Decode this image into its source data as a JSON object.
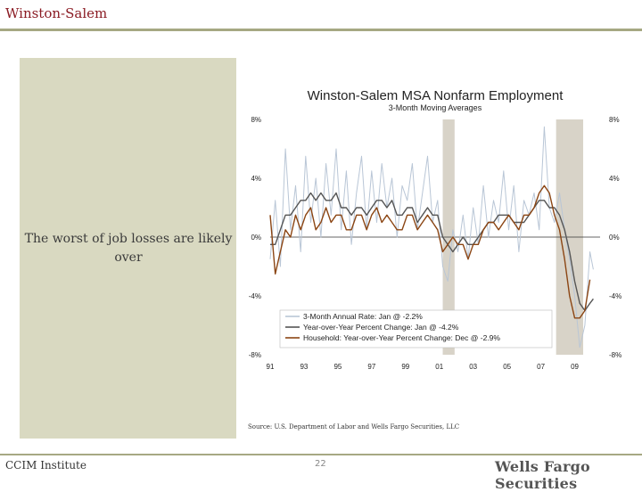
{
  "slide": {
    "title": "Winston-Salem",
    "panel_text": "The worst of job losses are likely over",
    "source": "Source: U.S. Department of Labor and Wells Fargo Securities, LLC",
    "footer_left": "CCIM Institute",
    "page_number": "22",
    "brand": "Wells Fargo Securities"
  },
  "chart_data": {
    "type": "line",
    "title": "Winston-Salem MSA Nonfarm Employment",
    "subtitle": "3-Month Moving Averages",
    "xlabel": "",
    "ylabel": "",
    "ylim": [
      -8,
      8
    ],
    "xlim": [
      1991,
      2010.5
    ],
    "y_ticks": [
      8,
      4,
      0,
      -4,
      -8
    ],
    "y_tick_labels": [
      "8%",
      "4%",
      "0%",
      "-4%",
      "-8%"
    ],
    "x_ticks": [
      1991,
      1993,
      1995,
      1997,
      1999,
      2001,
      2003,
      2005,
      2007,
      2009
    ],
    "x_tick_labels": [
      "91",
      "93",
      "95",
      "97",
      "99",
      "01",
      "03",
      "05",
      "07",
      "09"
    ],
    "recessions": [
      [
        2001.2,
        2001.9
      ],
      [
        2007.9,
        2009.5
      ]
    ],
    "legend_position": "bottom-center",
    "series": [
      {
        "name": "3-Month Annual Rate: Jan @ -2.2%",
        "color": "#b9c6d6",
        "x": [
          1991.0,
          1991.3,
          1991.6,
          1991.9,
          1992.2,
          1992.5,
          1992.8,
          1993.1,
          1993.4,
          1993.7,
          1994.0,
          1994.3,
          1994.6,
          1994.9,
          1995.2,
          1995.5,
          1995.8,
          1996.1,
          1996.4,
          1996.7,
          1997.0,
          1997.3,
          1997.6,
          1997.9,
          1998.2,
          1998.5,
          1998.8,
          1999.1,
          1999.4,
          1999.7,
          2000.0,
          2000.3,
          2000.6,
          2000.9,
          2001.2,
          2001.5,
          2001.8,
          2002.1,
          2002.4,
          2002.7,
          2003.0,
          2003.3,
          2003.6,
          2003.9,
          2004.2,
          2004.5,
          2004.8,
          2005.1,
          2005.4,
          2005.7,
          2006.0,
          2006.3,
          2006.6,
          2006.9,
          2007.2,
          2007.5,
          2007.8,
          2008.1,
          2008.4,
          2008.7,
          2009.0,
          2009.3,
          2009.6,
          2009.9,
          2010.1
        ],
        "values": [
          -1.5,
          2.5,
          -2.0,
          6.0,
          0.5,
          3.5,
          -1.0,
          5.5,
          1.0,
          4.0,
          0.0,
          5.0,
          1.5,
          6.0,
          0.5,
          4.5,
          -0.5,
          3.0,
          5.5,
          0.5,
          4.5,
          1.0,
          5.0,
          2.0,
          4.0,
          0.0,
          3.5,
          2.5,
          5.0,
          0.5,
          3.0,
          5.5,
          1.0,
          2.5,
          -2.0,
          -3.0,
          0.5,
          -1.0,
          1.5,
          -1.5,
          2.0,
          -0.5,
          3.5,
          0.0,
          2.5,
          1.0,
          4.5,
          0.5,
          3.5,
          -1.0,
          2.5,
          1.5,
          3.0,
          0.5,
          7.5,
          2.0,
          1.0,
          3.0,
          0.5,
          -1.5,
          -4.0,
          -7.5,
          -6.0,
          -1.0,
          -2.2
        ]
      },
      {
        "name": "Year-over-Year Percent Change: Jan @ -4.2%",
        "color": "#555555",
        "x": [
          1991.0,
          1991.3,
          1991.6,
          1991.9,
          1992.2,
          1992.5,
          1992.8,
          1993.1,
          1993.4,
          1993.7,
          1994.0,
          1994.3,
          1994.6,
          1994.9,
          1995.2,
          1995.5,
          1995.8,
          1996.1,
          1996.4,
          1996.7,
          1997.0,
          1997.3,
          1997.6,
          1997.9,
          1998.2,
          1998.5,
          1998.8,
          1999.1,
          1999.4,
          1999.7,
          2000.0,
          2000.3,
          2000.6,
          2000.9,
          2001.2,
          2001.5,
          2001.8,
          2002.1,
          2002.4,
          2002.7,
          2003.0,
          2003.3,
          2003.6,
          2003.9,
          2004.2,
          2004.5,
          2004.8,
          2005.1,
          2005.4,
          2005.7,
          2006.0,
          2006.3,
          2006.6,
          2006.9,
          2007.2,
          2007.5,
          2007.8,
          2008.1,
          2008.4,
          2008.7,
          2009.0,
          2009.3,
          2009.6,
          2009.9,
          2010.1
        ],
        "values": [
          -0.5,
          -0.5,
          0.5,
          1.5,
          1.5,
          2.0,
          2.5,
          2.5,
          3.0,
          2.5,
          3.0,
          2.5,
          2.5,
          3.0,
          2.0,
          2.0,
          1.5,
          2.0,
          2.0,
          1.5,
          2.0,
          2.5,
          2.5,
          2.0,
          2.5,
          1.5,
          1.5,
          2.0,
          2.0,
          1.0,
          1.5,
          2.0,
          1.5,
          1.5,
          0.0,
          -0.5,
          -1.0,
          -0.5,
          0.0,
          -0.5,
          -0.5,
          0.0,
          0.5,
          1.0,
          1.0,
          1.5,
          1.5,
          1.5,
          1.0,
          1.0,
          1.0,
          1.5,
          2.0,
          2.5,
          2.5,
          2.0,
          2.0,
          1.5,
          0.5,
          -1.0,
          -3.0,
          -4.5,
          -5.0,
          -4.5,
          -4.2
        ]
      },
      {
        "name": "Household: Year-over-Year Percent Change: Dec @ -2.9%",
        "color": "#8b4513",
        "x": [
          1991.0,
          1991.3,
          1991.6,
          1991.9,
          1992.2,
          1992.5,
          1992.8,
          1993.1,
          1993.4,
          1993.7,
          1994.0,
          1994.3,
          1994.6,
          1994.9,
          1995.2,
          1995.5,
          1995.8,
          1996.1,
          1996.4,
          1996.7,
          1997.0,
          1997.3,
          1997.6,
          1997.9,
          1998.2,
          1998.5,
          1998.8,
          1999.1,
          1999.4,
          1999.7,
          2000.0,
          2000.3,
          2000.6,
          2000.9,
          2001.2,
          2001.5,
          2001.8,
          2002.1,
          2002.4,
          2002.7,
          2003.0,
          2003.3,
          2003.6,
          2003.9,
          2004.2,
          2004.5,
          2004.8,
          2005.1,
          2005.4,
          2005.7,
          2006.0,
          2006.3,
          2006.6,
          2006.9,
          2007.2,
          2007.5,
          2007.8,
          2008.1,
          2008.4,
          2008.7,
          2009.0,
          2009.3,
          2009.6,
          2009.9
        ],
        "values": [
          1.5,
          -2.5,
          -1.0,
          0.5,
          0.0,
          1.5,
          0.5,
          1.5,
          2.0,
          0.5,
          1.0,
          2.0,
          1.0,
          1.5,
          1.5,
          0.5,
          0.5,
          1.5,
          1.5,
          0.5,
          1.5,
          2.0,
          1.0,
          1.5,
          1.0,
          0.5,
          0.5,
          1.5,
          1.5,
          0.5,
          1.0,
          1.5,
          1.0,
          0.5,
          -1.0,
          -0.5,
          0.0,
          -0.5,
          -0.5,
          -1.5,
          -0.5,
          -0.5,
          0.5,
          1.0,
          1.0,
          0.5,
          1.0,
          1.5,
          1.0,
          0.5,
          1.5,
          1.5,
          2.0,
          3.0,
          3.5,
          3.0,
          1.5,
          0.5,
          -1.5,
          -4.0,
          -5.5,
          -5.5,
          -5.0,
          -2.9
        ]
      }
    ]
  }
}
